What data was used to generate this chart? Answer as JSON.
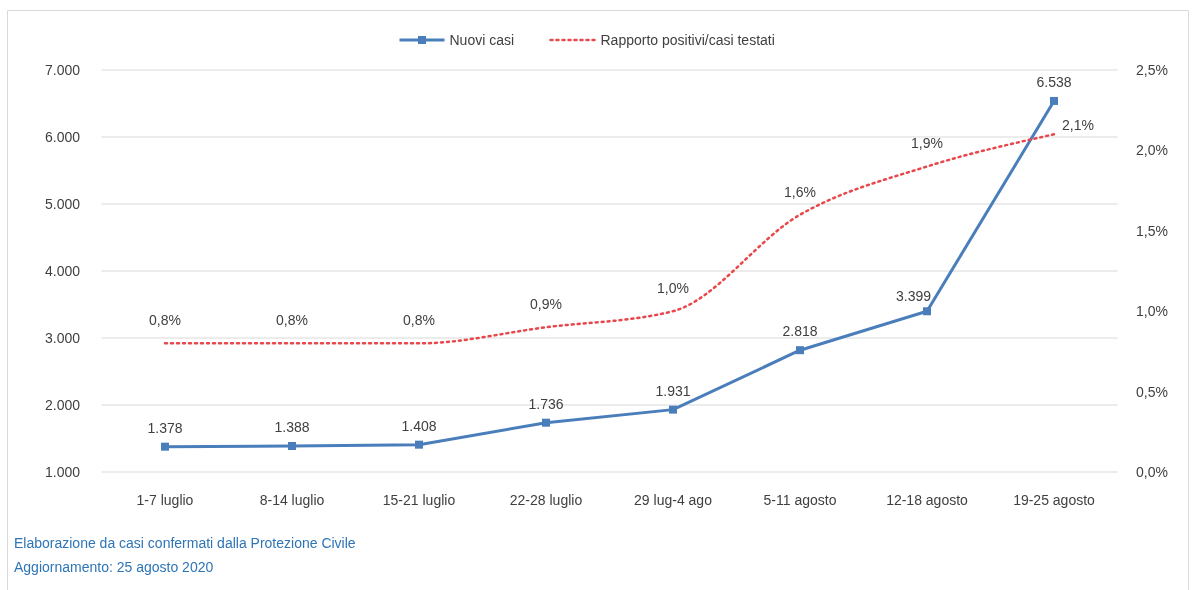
{
  "chart_data": {
    "type": "line",
    "categories": [
      "1-7 luglio",
      "8-14 luglio",
      "15-21 luglio",
      "22-28 luglio",
      "29 lug-4 ago",
      "5-11 agosto",
      "12-18 agosto",
      "19-25 agosto"
    ],
    "series": [
      {
        "name": "Nuovi casi",
        "color": "#4a7ebb",
        "values": [
          1378,
          1388,
          1408,
          1736,
          1931,
          2818,
          3399,
          6538
        ],
        "marker": "square",
        "line_style": "solid",
        "value_labels": [
          "1.378",
          "1.388",
          "1.408",
          "1.736",
          "1.931",
          "2.818",
          "3.399",
          "6.538"
        ]
      },
      {
        "name": "Rapporto positivi/casi testati",
        "color": "#e8474c",
        "axis": "y2",
        "values": [
          0.8,
          0.8,
          0.8,
          0.9,
          1.0,
          1.6,
          1.9,
          2.1
        ],
        "line_style": "dotted",
        "value_labels": [
          "0,8%",
          "0,8%",
          "0,8%",
          "0,9%",
          "1,0%",
          "1,6%",
          "1,9%",
          "2,1%"
        ]
      }
    ],
    "ylim": [
      1000,
      7000
    ],
    "yticks": [
      {
        "value": 1000,
        "label": "1.000"
      },
      {
        "value": 2000,
        "label": "2.000"
      },
      {
        "value": 3000,
        "label": "3.000"
      },
      {
        "value": 4000,
        "label": "4.000"
      },
      {
        "value": 5000,
        "label": "5.000"
      },
      {
        "value": 6000,
        "label": "6.000"
      },
      {
        "value": 7000,
        "label": "7.000"
      }
    ],
    "y2lim": [
      0,
      2.5
    ],
    "y2ticks": [
      {
        "value": 0,
        "label": "0,0%"
      },
      {
        "value": 0.5,
        "label": "0,5%"
      },
      {
        "value": 1,
        "label": "1,0%"
      },
      {
        "value": 1.5,
        "label": "1,5%"
      },
      {
        "value": 2,
        "label": "2,0%"
      },
      {
        "value": 2.5,
        "label": "2,5%"
      }
    ],
    "grid": "y",
    "legend": "top",
    "annotations": [
      "Elaborazione da casi confermati dalla Protezione Civile",
      "Aggiornamento: 25 agosto 2020"
    ]
  }
}
